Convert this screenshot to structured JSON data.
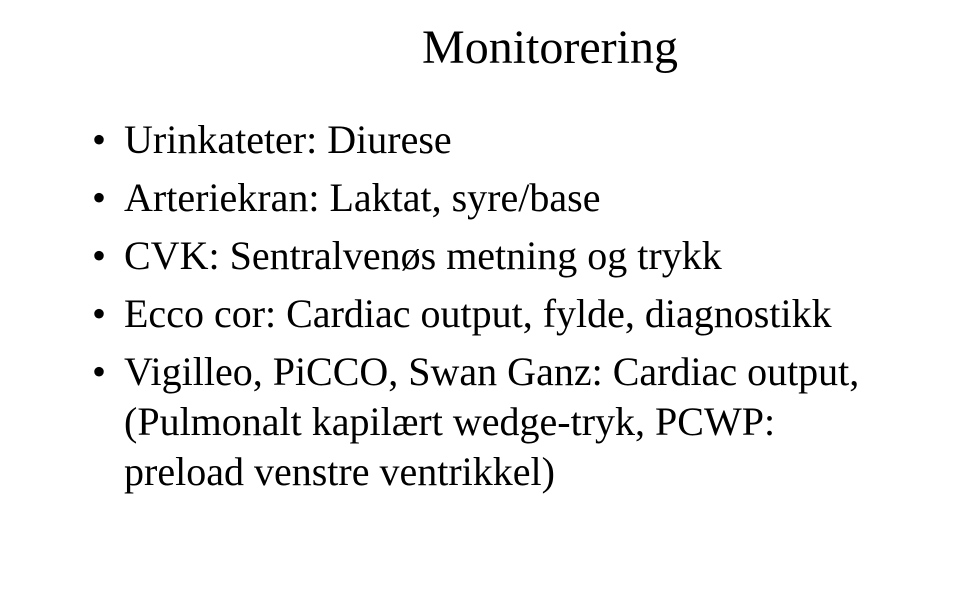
{
  "slide": {
    "title": "Monitorering",
    "title_fontsize": 48,
    "body_fontsize": 40,
    "font_family": "Times New Roman",
    "background_color": "#ffffff",
    "text_color": "#000000",
    "bullets": [
      "Urinkateter: Diurese",
      "Arteriekran: Laktat, syre/base",
      "CVK: Sentralvenøs metning og trykk",
      "Ecco cor: Cardiac output, fylde, diagnostikk",
      "Vigilleo, PiCCO, Swan Ganz: Cardiac output,  (Pulmonalt kapilært wedge-tryk, PCWP: preload venstre ventrikkel)"
    ]
  }
}
